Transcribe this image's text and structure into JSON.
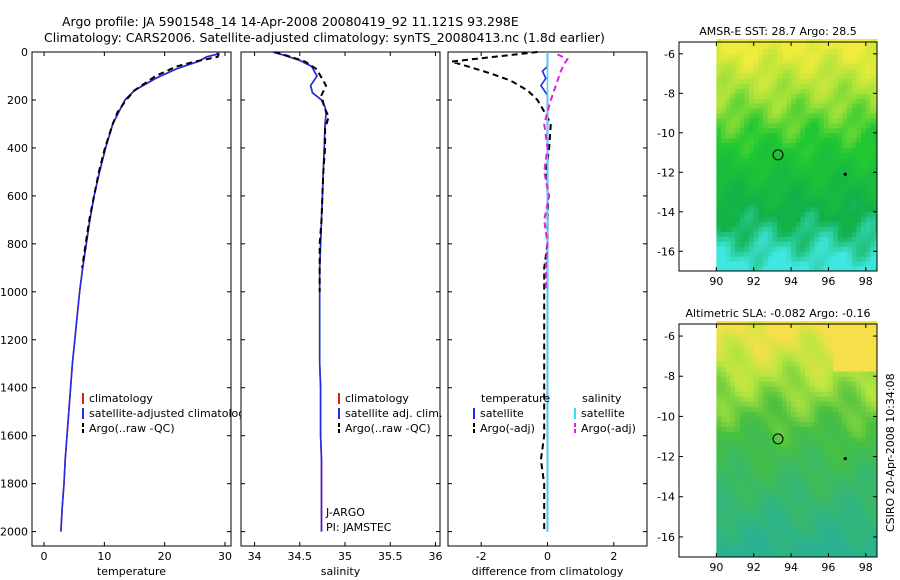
{
  "title": {
    "line1": "Argo profile: JA 5901548_14 14-Apr-2008 20080419_92 11.121S 93.298E",
    "line2": "Climatology: CARS2006. Satellite-adjusted climatology: synTS_20080413.nc (1.8d earlier)"
  },
  "side_stamp": "CSIRO 20-Apr-2008 10:34:08",
  "colors": {
    "climatology": "#e0201a",
    "satellite": "#1f2ee6",
    "argo": "#000000",
    "salinity_satellite": "#33e0f0",
    "salinity_argo": "#e020e0"
  },
  "chart_data": [
    {
      "type": "line",
      "id": "temperature",
      "xlabel": "temperature",
      "xlim": [
        -2,
        31
      ],
      "ylim": [
        2060,
        0
      ],
      "xticks": [
        0,
        10,
        20,
        30
      ],
      "yticks": [
        0,
        200,
        400,
        600,
        800,
        1000,
        1200,
        1400,
        1600,
        1800,
        2000
      ],
      "legend": [
        "climatology",
        "satellite-adjusted climatology",
        "Argo(..raw -QC)"
      ],
      "series": [
        {
          "name": "climatology",
          "color": "#e0201a",
          "dash": false,
          "points": [
            [
              28.9,
              0
            ],
            [
              28.6,
              10
            ],
            [
              27,
              20
            ],
            [
              25.5,
              40
            ],
            [
              22,
              70
            ],
            [
              18.5,
              110
            ],
            [
              15,
              160
            ],
            [
              13.4,
              200
            ],
            [
              12.4,
              250
            ],
            [
              11.4,
              300
            ],
            [
              10.2,
              400
            ],
            [
              9.2,
              500
            ],
            [
              8.3,
              600
            ],
            [
              7.6,
              700
            ],
            [
              7,
              800
            ],
            [
              6.4,
              900
            ],
            [
              5.9,
              1000
            ],
            [
              5.5,
              1100
            ],
            [
              5.1,
              1200
            ],
            [
              4.7,
              1300
            ],
            [
              4.4,
              1400
            ],
            [
              4.1,
              1500
            ],
            [
              3.8,
              1600
            ],
            [
              3.5,
              1700
            ],
            [
              3.3,
              1800
            ],
            [
              3,
              1900
            ],
            [
              2.8,
              2000
            ]
          ]
        },
        {
          "name": "satellite-adjusted climatology",
          "color": "#1f2ee6",
          "dash": false,
          "points": [
            [
              28.9,
              0
            ],
            [
              28.6,
              10
            ],
            [
              27,
              20
            ],
            [
              25.5,
              40
            ],
            [
              22,
              70
            ],
            [
              18.5,
              110
            ],
            [
              15,
              160
            ],
            [
              13.4,
              200
            ],
            [
              12.4,
              250
            ],
            [
              11.4,
              300
            ],
            [
              10.2,
              400
            ],
            [
              9.2,
              500
            ],
            [
              8.3,
              600
            ],
            [
              7.6,
              700
            ],
            [
              7,
              800
            ],
            [
              6.4,
              900
            ],
            [
              5.9,
              1000
            ],
            [
              5.5,
              1100
            ],
            [
              5.1,
              1200
            ],
            [
              4.7,
              1300
            ],
            [
              4.4,
              1400
            ],
            [
              4.1,
              1500
            ],
            [
              3.8,
              1600
            ],
            [
              3.5,
              1700
            ],
            [
              3.3,
              1800
            ],
            [
              3,
              1900
            ],
            [
              2.8,
              2000
            ]
          ]
        },
        {
          "name": "Argo(..raw -QC)",
          "color": "#000000",
          "dash": true,
          "points": [
            [
              29,
              5
            ],
            [
              28.8,
              20
            ],
            [
              27,
              30
            ],
            [
              25,
              40
            ],
            [
              22,
              60
            ],
            [
              18.5,
              100
            ],
            [
              15,
              160
            ],
            [
              13.6,
              200
            ],
            [
              12.2,
              250
            ],
            [
              11.4,
              300
            ],
            [
              10.1,
              400
            ],
            [
              9.1,
              500
            ],
            [
              8.3,
              600
            ],
            [
              7.5,
              700
            ],
            [
              6.9,
              800
            ],
            [
              6.3,
              900
            ]
          ]
        }
      ]
    },
    {
      "type": "line",
      "id": "salinity",
      "xlabel": "salinity",
      "xlim": [
        33.85,
        36.05
      ],
      "ylim": [
        2060,
        0
      ],
      "xticks": [
        34,
        34.5,
        35,
        35.5,
        36
      ],
      "legend": [
        "climatology",
        "satellite adj. clim.",
        "Argo(..raw -QC)"
      ],
      "annotation": [
        "J-ARGO",
        "PI: JAMSTEC"
      ],
      "series": [
        {
          "name": "climatology",
          "color": "#e0201a",
          "dash": false,
          "points": [
            [
              34.2,
              0
            ],
            [
              34.34,
              15
            ],
            [
              34.5,
              35
            ],
            [
              34.63,
              60
            ],
            [
              34.66,
              80
            ],
            [
              34.69,
              100
            ],
            [
              34.62,
              140
            ],
            [
              34.64,
              170
            ],
            [
              34.74,
              200
            ],
            [
              34.78,
              230
            ],
            [
              34.79,
              260
            ],
            [
              34.78,
              300
            ],
            [
              34.77,
              400
            ],
            [
              34.76,
              500
            ],
            [
              34.75,
              600
            ],
            [
              34.74,
              700
            ],
            [
              34.73,
              800
            ],
            [
              34.72,
              900
            ],
            [
              34.72,
              1000
            ],
            [
              34.72,
              1100
            ],
            [
              34.72,
              1200
            ],
            [
              34.72,
              1300
            ],
            [
              34.73,
              1400
            ],
            [
              34.73,
              1500
            ],
            [
              34.73,
              1600
            ],
            [
              34.74,
              1700
            ],
            [
              34.74,
              1800
            ],
            [
              34.74,
              1900
            ],
            [
              34.74,
              2000
            ]
          ]
        },
        {
          "name": "satellite adj. clim.",
          "color": "#1f2ee6",
          "dash": false,
          "points": [
            [
              34.2,
              0
            ],
            [
              34.34,
              15
            ],
            [
              34.5,
              35
            ],
            [
              34.63,
              60
            ],
            [
              34.66,
              80
            ],
            [
              34.69,
              100
            ],
            [
              34.62,
              140
            ],
            [
              34.64,
              170
            ],
            [
              34.74,
              200
            ],
            [
              34.78,
              230
            ],
            [
              34.79,
              260
            ],
            [
              34.78,
              300
            ],
            [
              34.77,
              400
            ],
            [
              34.76,
              500
            ],
            [
              34.75,
              600
            ],
            [
              34.74,
              700
            ],
            [
              34.73,
              800
            ],
            [
              34.72,
              900
            ],
            [
              34.72,
              1000
            ],
            [
              34.72,
              1100
            ],
            [
              34.72,
              1200
            ],
            [
              34.72,
              1300
            ],
            [
              34.73,
              1400
            ],
            [
              34.73,
              1500
            ],
            [
              34.73,
              1600
            ],
            [
              34.74,
              1700
            ],
            [
              34.74,
              1800
            ],
            [
              34.74,
              1900
            ],
            [
              34.74,
              2000
            ]
          ]
        },
        {
          "name": "Argo(..raw -QC)",
          "color": "#000000",
          "dash": true,
          "points": [
            [
              34.22,
              0
            ],
            [
              34.4,
              20
            ],
            [
              34.56,
              40
            ],
            [
              34.68,
              70
            ],
            [
              34.73,
              100
            ],
            [
              34.79,
              140
            ],
            [
              34.74,
              180
            ],
            [
              34.77,
              230
            ],
            [
              34.82,
              270
            ],
            [
              34.78,
              320
            ],
            [
              34.78,
              400
            ],
            [
              34.76,
              500
            ],
            [
              34.75,
              600
            ],
            [
              34.74,
              700
            ],
            [
              34.72,
              800
            ],
            [
              34.72,
              900
            ],
            [
              34.72,
              1000
            ]
          ]
        }
      ]
    },
    {
      "type": "line",
      "id": "difference",
      "xlabel": "difference from climatology",
      "xlim": [
        -3,
        3
      ],
      "ylim": [
        2060,
        0
      ],
      "xticks": [
        -2,
        0,
        2
      ],
      "legend_left": {
        "header": "temperature",
        "items": [
          "satellite",
          "Argo(-adj)"
        ]
      },
      "legend_right": {
        "header": "salinity",
        "items": [
          "satellite",
          "Argo(-adj)"
        ]
      },
      "series": [
        {
          "name": "temperature satellite",
          "color": "#1f2ee6",
          "dash": false,
          "points": [
            [
              0,
              0
            ],
            [
              0,
              60
            ],
            [
              -0.15,
              80
            ],
            [
              -0.05,
              110
            ],
            [
              -0.2,
              140
            ],
            [
              0,
              180
            ],
            [
              0,
              300
            ],
            [
              0,
              2000
            ]
          ]
        },
        {
          "name": "temperature Argo(-adj)",
          "color": "#000000",
          "dash": true,
          "points": [
            [
              -0.3,
              0
            ],
            [
              -2.9,
              40
            ],
            [
              -2.4,
              60
            ],
            [
              -1.7,
              90
            ],
            [
              -1.1,
              120
            ],
            [
              -0.6,
              160
            ],
            [
              -0.3,
              200
            ],
            [
              -0.05,
              260
            ],
            [
              0.1,
              300
            ],
            [
              0.05,
              400
            ],
            [
              -0.05,
              500
            ],
            [
              0.02,
              600
            ],
            [
              0,
              700
            ],
            [
              0,
              800
            ],
            [
              -0.1,
              900
            ],
            [
              -0.1,
              1000
            ],
            [
              -0.1,
              1100
            ],
            [
              -0.1,
              1200
            ],
            [
              -0.1,
              1300
            ],
            [
              -0.1,
              1400
            ],
            [
              -0.1,
              1500
            ],
            [
              -0.1,
              1600
            ],
            [
              -0.2,
              1700
            ],
            [
              -0.1,
              1800
            ],
            [
              -0.1,
              1900
            ],
            [
              -0.1,
              2000
            ]
          ]
        },
        {
          "name": "salinity satellite",
          "color": "#33e0f0",
          "dash": false,
          "points": [
            [
              0,
              0
            ],
            [
              0,
              100
            ],
            [
              0,
              200
            ],
            [
              0,
              2000
            ]
          ]
        },
        {
          "name": "salinity Argo(-adj)",
          "color": "#e020e0",
          "dash": true,
          "points": [
            [
              0.3,
              10
            ],
            [
              0.6,
              30
            ],
            [
              0.5,
              50
            ],
            [
              0.4,
              80
            ],
            [
              0.3,
              120
            ],
            [
              0.1,
              200
            ],
            [
              -0.1,
              300
            ],
            [
              0,
              400
            ],
            [
              -0.1,
              500
            ],
            [
              0.05,
              600
            ],
            [
              -0.1,
              700
            ],
            [
              0,
              800
            ],
            [
              -0.05,
              900
            ],
            [
              -0.05,
              1000
            ]
          ]
        }
      ]
    },
    {
      "type": "heatmap",
      "id": "sst_map",
      "title": "AMSR-E SST: 28.7 Argo: 28.5",
      "xlim": [
        88,
        98.6
      ],
      "ylim": [
        -17,
        -5.4
      ],
      "xticks": [
        90,
        92,
        94,
        96,
        98
      ],
      "yticks": [
        -6,
        -8,
        -10,
        -12,
        -14,
        -16
      ],
      "argo_location": [
        93.3,
        -11.12
      ],
      "secondary_marker": [
        96.9,
        -12.1
      ]
    },
    {
      "type": "heatmap",
      "id": "sla_map",
      "title": "Altimetric SLA: -0.082 Argo: -0.16",
      "xlim": [
        88,
        98.6
      ],
      "ylim": [
        -17,
        -5.4
      ],
      "xticks": [
        90,
        92,
        94,
        96,
        98
      ],
      "yticks": [
        -6,
        -8,
        -10,
        -12,
        -14,
        -16
      ],
      "argo_location": [
        93.3,
        -11.12
      ],
      "secondary_marker": [
        96.9,
        -12.1
      ]
    }
  ]
}
